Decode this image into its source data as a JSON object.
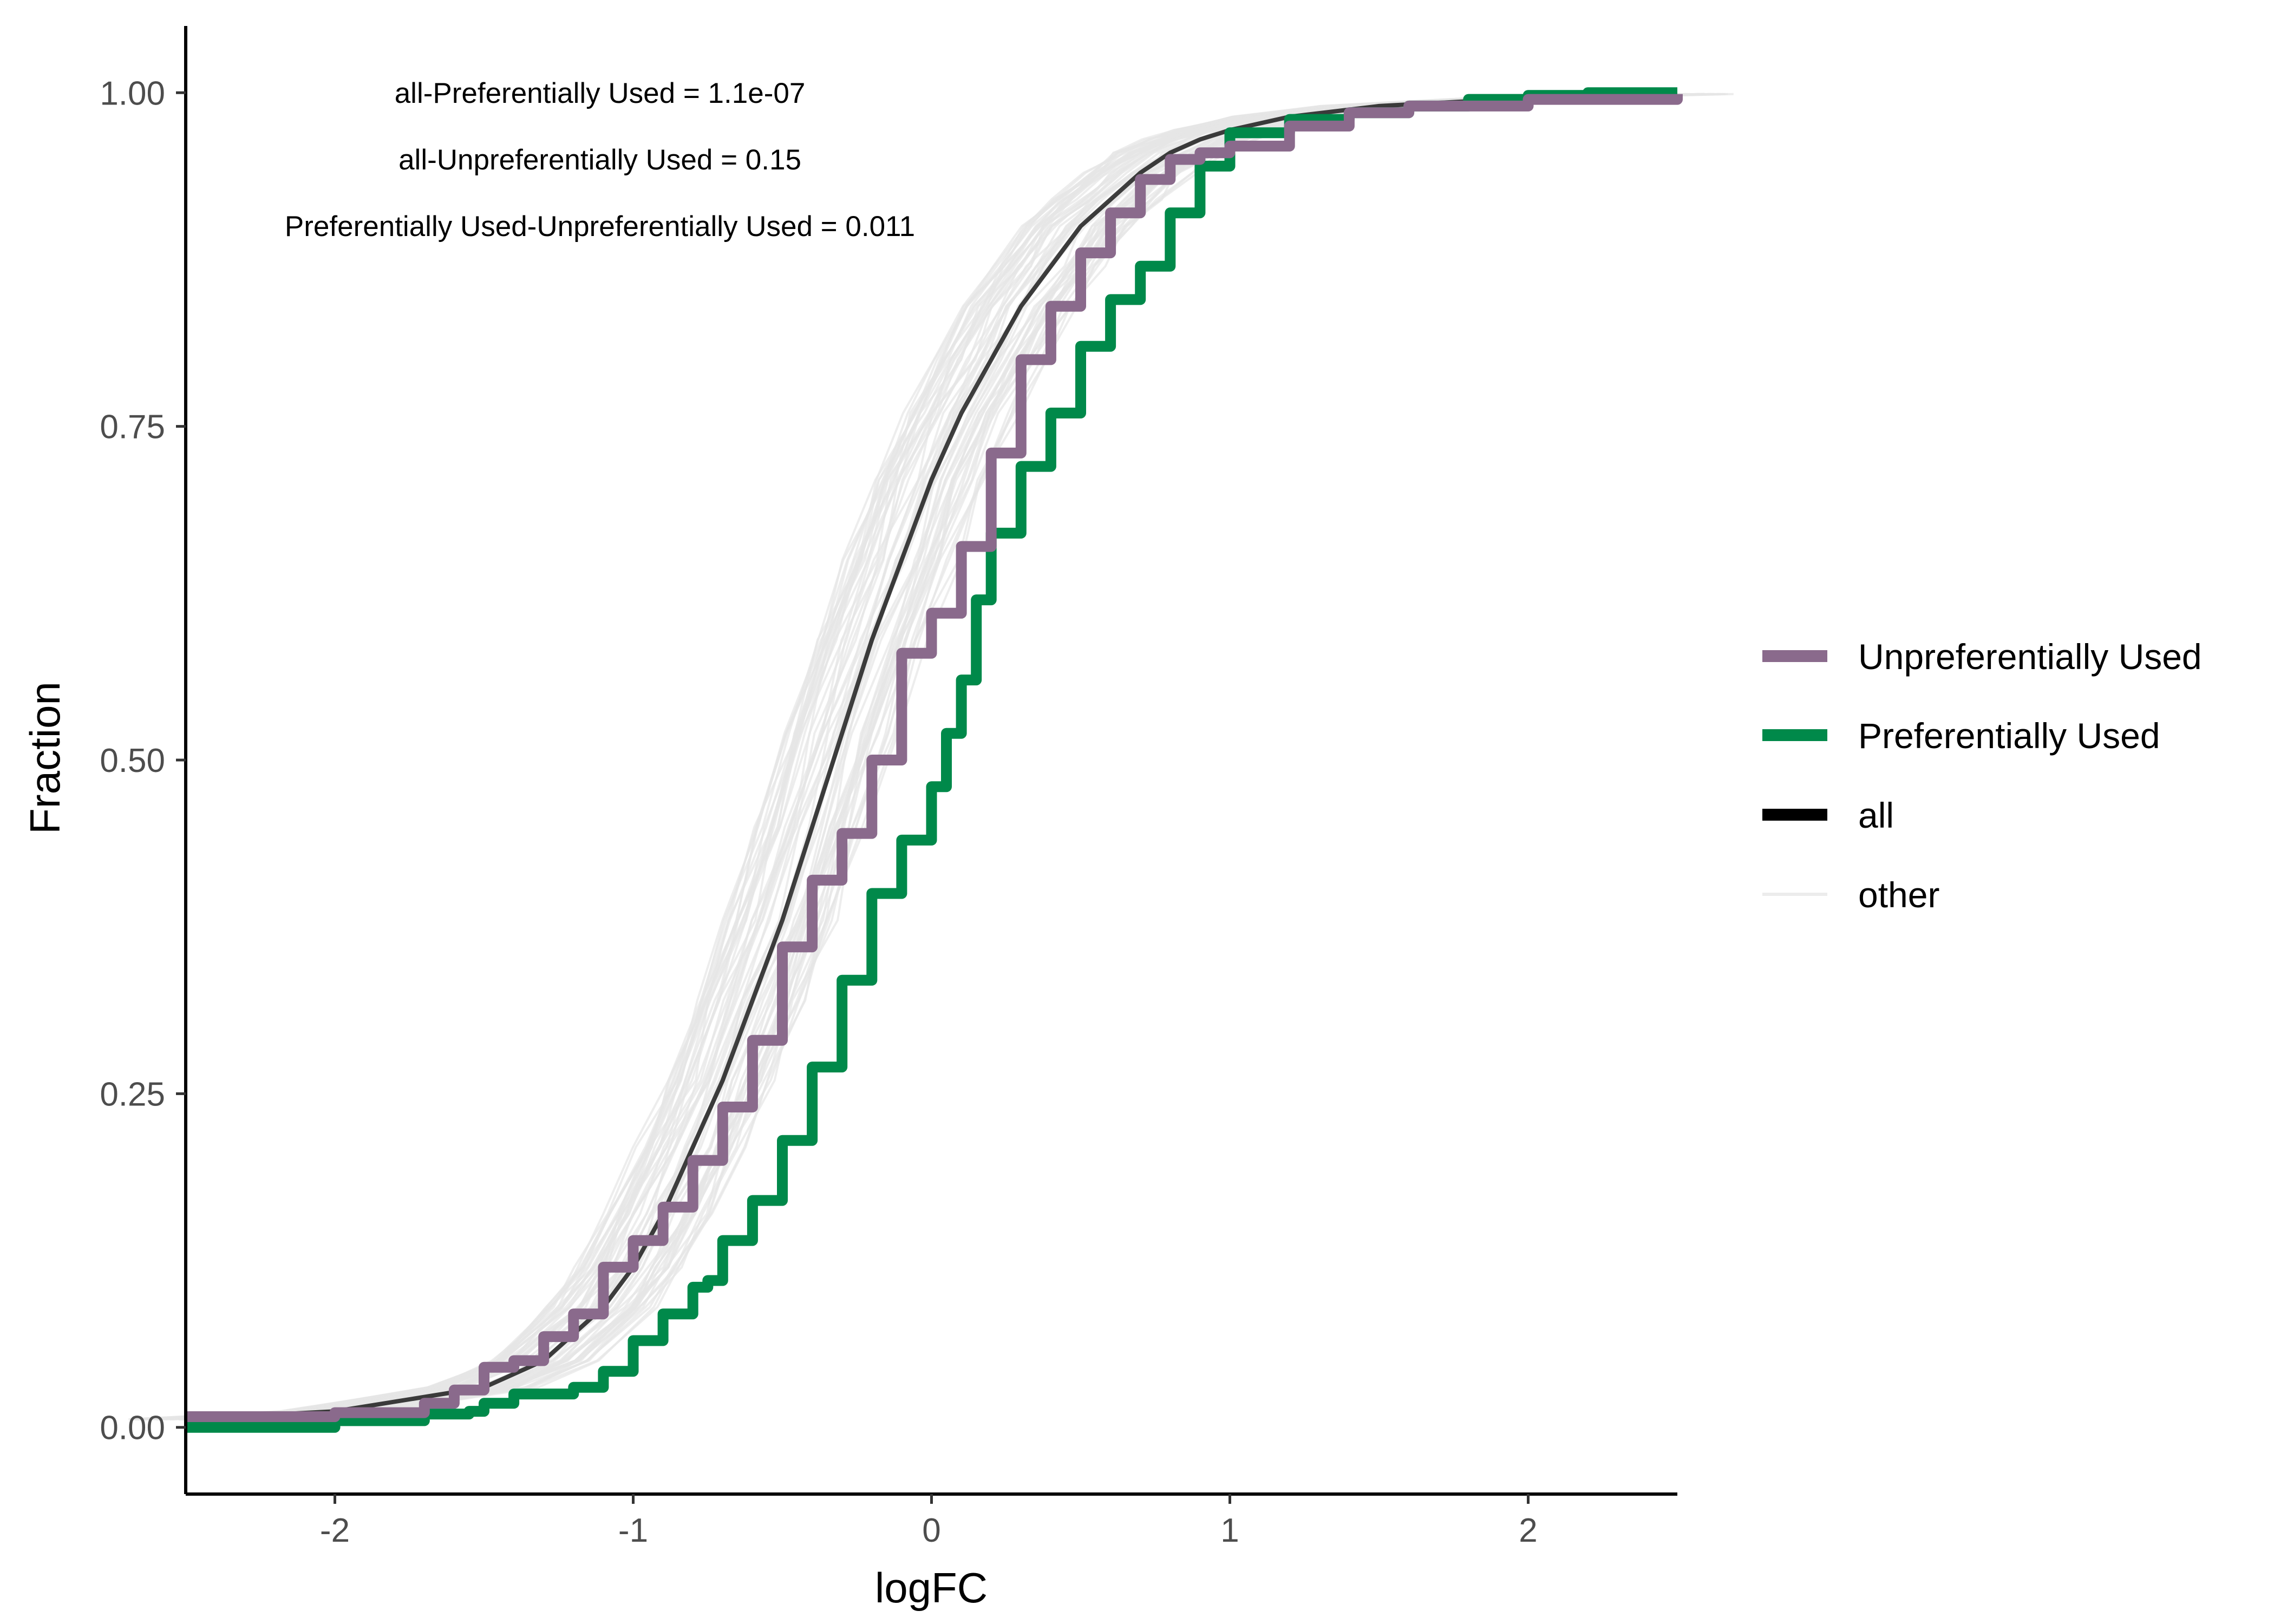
{
  "chart_data": {
    "type": "line",
    "title": "",
    "xlabel": "logFC",
    "ylabel": "Fraction",
    "xlim": [
      -2.5,
      2.5
    ],
    "ylim": [
      -0.05,
      1.05
    ],
    "x_ticks": [
      -2,
      -1,
      0,
      1,
      2
    ],
    "x_tick_labels": [
      "-2",
      "-1",
      "0",
      "1",
      "2"
    ],
    "y_ticks": [
      0,
      0.25,
      0.5,
      0.75,
      1
    ],
    "y_tick_labels": [
      "0.00",
      "0.25",
      "0.50",
      "0.75",
      "1.00"
    ],
    "grid": false,
    "legend_position": "right",
    "annotations": [
      "all-Preferentially Used = 1.1e-07",
      "all-Unpreferentially Used = 0.15",
      "Preferentially Used-Unpreferentially Used = 0.011"
    ],
    "series": [
      {
        "name": "Unpreferentially Used",
        "color": "#8a6a8c",
        "points": [
          [
            -2.5,
            0.008
          ],
          [
            -2.0,
            0.011
          ],
          [
            -1.7,
            0.018
          ],
          [
            -1.6,
            0.028
          ],
          [
            -1.5,
            0.045
          ],
          [
            -1.4,
            0.05
          ],
          [
            -1.3,
            0.068
          ],
          [
            -1.2,
            0.085
          ],
          [
            -1.1,
            0.12
          ],
          [
            -1.0,
            0.14
          ],
          [
            -0.9,
            0.165
          ],
          [
            -0.8,
            0.2
          ],
          [
            -0.7,
            0.24
          ],
          [
            -0.6,
            0.29
          ],
          [
            -0.5,
            0.36
          ],
          [
            -0.4,
            0.41
          ],
          [
            -0.3,
            0.445
          ],
          [
            -0.2,
            0.5
          ],
          [
            -0.1,
            0.58
          ],
          [
            0.0,
            0.61
          ],
          [
            0.1,
            0.66
          ],
          [
            0.2,
            0.73
          ],
          [
            0.3,
            0.8
          ],
          [
            0.4,
            0.84
          ],
          [
            0.5,
            0.88
          ],
          [
            0.6,
            0.91
          ],
          [
            0.7,
            0.935
          ],
          [
            0.8,
            0.95
          ],
          [
            0.9,
            0.955
          ],
          [
            1.0,
            0.96
          ],
          [
            1.2,
            0.975
          ],
          [
            1.4,
            0.985
          ],
          [
            1.6,
            0.99
          ],
          [
            2.0,
            0.995
          ],
          [
            2.5,
            0.999
          ]
        ]
      },
      {
        "name": "Preferentially Used",
        "color": "#00894a",
        "points": [
          [
            -2.5,
            0.0
          ],
          [
            -2.0,
            0.005
          ],
          [
            -1.7,
            0.01
          ],
          [
            -1.55,
            0.012
          ],
          [
            -1.5,
            0.018
          ],
          [
            -1.4,
            0.025
          ],
          [
            -1.2,
            0.03
          ],
          [
            -1.1,
            0.042
          ],
          [
            -1.0,
            0.065
          ],
          [
            -0.9,
            0.085
          ],
          [
            -0.8,
            0.105
          ],
          [
            -0.75,
            0.11
          ],
          [
            -0.7,
            0.14
          ],
          [
            -0.6,
            0.17
          ],
          [
            -0.5,
            0.215
          ],
          [
            -0.4,
            0.27
          ],
          [
            -0.3,
            0.335
          ],
          [
            -0.2,
            0.4
          ],
          [
            -0.1,
            0.44
          ],
          [
            0.0,
            0.48
          ],
          [
            0.05,
            0.52
          ],
          [
            0.1,
            0.56
          ],
          [
            0.15,
            0.62
          ],
          [
            0.2,
            0.67
          ],
          [
            0.3,
            0.72
          ],
          [
            0.4,
            0.76
          ],
          [
            0.5,
            0.81
          ],
          [
            0.6,
            0.845
          ],
          [
            0.7,
            0.87
          ],
          [
            0.8,
            0.91
          ],
          [
            0.9,
            0.945
          ],
          [
            1.0,
            0.97
          ],
          [
            1.2,
            0.98
          ],
          [
            1.4,
            0.985
          ],
          [
            1.6,
            0.99
          ],
          [
            1.8,
            0.995
          ],
          [
            2.0,
            0.998
          ],
          [
            2.2,
            1.0
          ],
          [
            2.5,
            1.0
          ]
        ]
      },
      {
        "name": "all",
        "color": "#000000",
        "points": [
          [
            -2.5,
            0.006
          ],
          [
            -2.0,
            0.012
          ],
          [
            -1.5,
            0.03
          ],
          [
            -1.3,
            0.05
          ],
          [
            -1.1,
            0.09
          ],
          [
            -1.0,
            0.12
          ],
          [
            -0.9,
            0.16
          ],
          [
            -0.8,
            0.21
          ],
          [
            -0.7,
            0.26
          ],
          [
            -0.6,
            0.32
          ],
          [
            -0.5,
            0.38
          ],
          [
            -0.4,
            0.45
          ],
          [
            -0.3,
            0.52
          ],
          [
            -0.2,
            0.59
          ],
          [
            -0.1,
            0.65
          ],
          [
            0.0,
            0.71
          ],
          [
            0.1,
            0.76
          ],
          [
            0.2,
            0.8
          ],
          [
            0.3,
            0.84
          ],
          [
            0.4,
            0.87
          ],
          [
            0.5,
            0.9
          ],
          [
            0.6,
            0.92
          ],
          [
            0.7,
            0.94
          ],
          [
            0.8,
            0.955
          ],
          [
            0.9,
            0.965
          ],
          [
            1.0,
            0.972
          ],
          [
            1.2,
            0.982
          ],
          [
            1.5,
            0.99
          ],
          [
            2.0,
            0.996
          ],
          [
            2.5,
            0.999
          ]
        ]
      },
      {
        "name": "other",
        "color": "#e6e6e6",
        "points": []
      }
    ],
    "legend": [
      "Unpreferentially Used",
      "Preferentially Used",
      "all",
      "other"
    ]
  }
}
